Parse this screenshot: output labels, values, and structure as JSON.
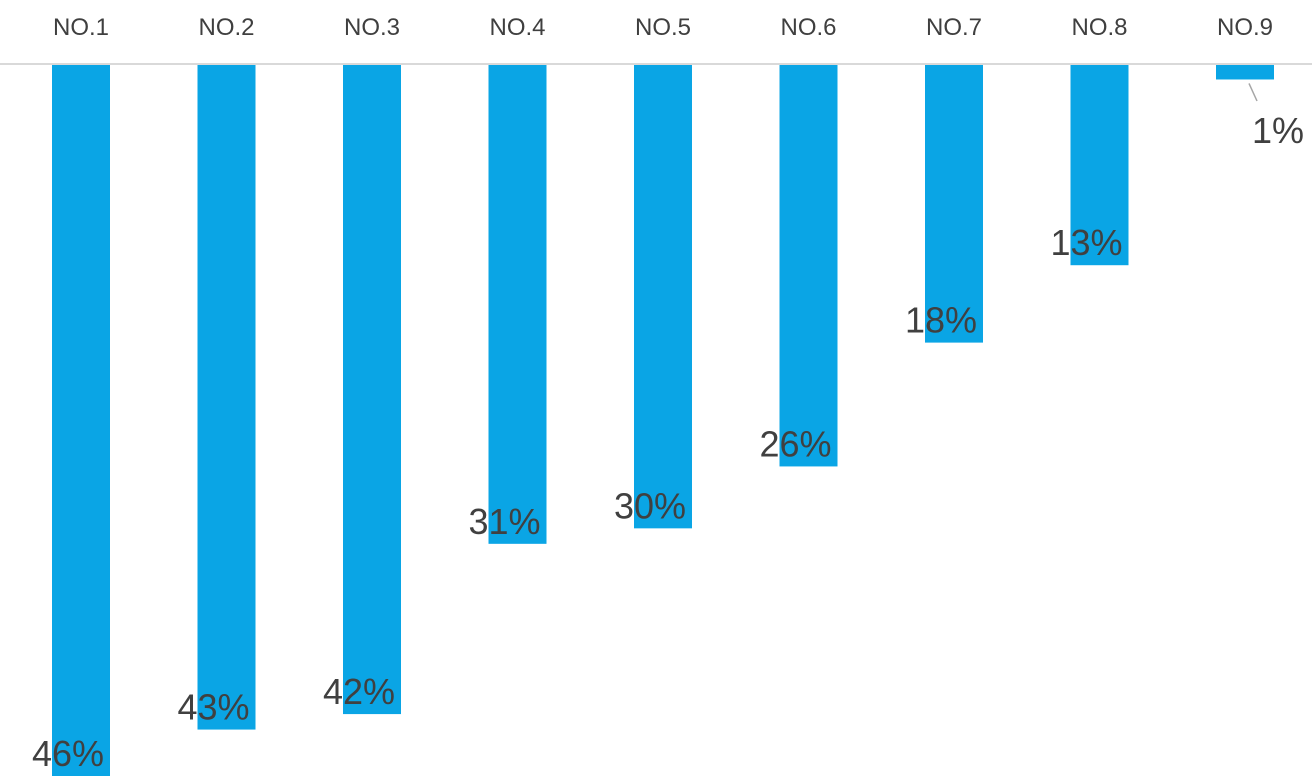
{
  "chart_data": {
    "type": "bar",
    "orientation": "vertical-inverted",
    "categories": [
      "NO.1",
      "NO.2",
      "NO.3",
      "NO.4",
      "NO.5",
      "NO.6",
      "NO.7",
      "NO.8",
      "NO.9"
    ],
    "values": [
      46,
      43,
      42,
      31,
      30,
      26,
      18,
      13,
      1
    ],
    "data_labels": [
      "46%",
      "43%",
      "42%",
      "31%",
      "30%",
      "26%",
      "18%",
      "13%",
      "1%"
    ],
    "unit": "%",
    "ylim": [
      0,
      46
    ],
    "category_axis_position": "top",
    "grid": false,
    "legend": "none",
    "title": "",
    "xlabel": "",
    "ylabel": "",
    "colors": {
      "bar": "#0AA5E5",
      "axis": "#d9d9d9",
      "text": "#404040",
      "leader": "#a6a6a6"
    }
  }
}
